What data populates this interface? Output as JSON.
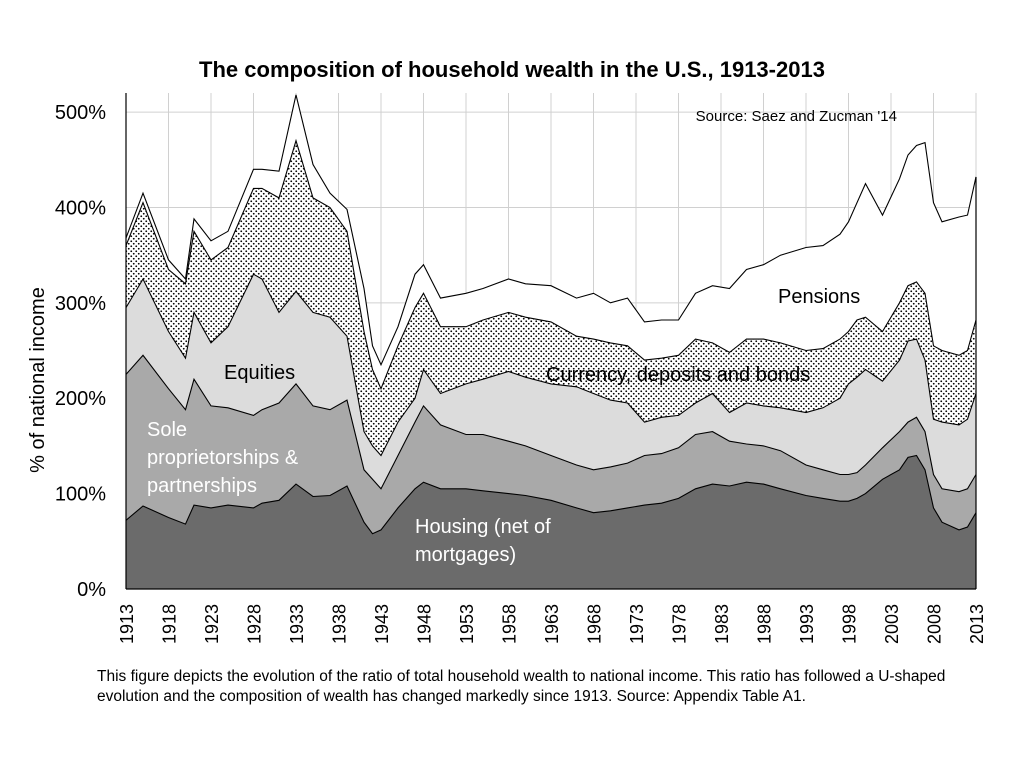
{
  "chart_data": {
    "type": "area",
    "title": "The composition of household wealth in the U.S., 1913-2013",
    "ylabel": "%  of national income",
    "xlabel": "",
    "xlim": [
      1913,
      2013
    ],
    "ylim": [
      0,
      520
    ],
    "grid": true,
    "yticks": [
      {
        "value": 0,
        "label": "0%"
      },
      {
        "value": 100,
        "label": "100%"
      },
      {
        "value": 200,
        "label": "200%"
      },
      {
        "value": 300,
        "label": "300%"
      },
      {
        "value": 400,
        "label": "400%"
      },
      {
        "value": 500,
        "label": "500%"
      }
    ],
    "xticks": [
      {
        "value": 1913,
        "label": "1913"
      },
      {
        "value": 1918,
        "label": "1918"
      },
      {
        "value": 1923,
        "label": "1923"
      },
      {
        "value": 1928,
        "label": "1928"
      },
      {
        "value": 1933,
        "label": "1933"
      },
      {
        "value": 1938,
        "label": "1938"
      },
      {
        "value": 1943,
        "label": "1943"
      },
      {
        "value": 1948,
        "label": "1948"
      },
      {
        "value": 1953,
        "label": "1953"
      },
      {
        "value": 1958,
        "label": "1958"
      },
      {
        "value": 1963,
        "label": "1963"
      },
      {
        "value": 1968,
        "label": "1968"
      },
      {
        "value": 1973,
        "label": "1973"
      },
      {
        "value": 1978,
        "label": "1978"
      },
      {
        "value": 1983,
        "label": "1983"
      },
      {
        "value": 1988,
        "label": "1988"
      },
      {
        "value": 1993,
        "label": "1993"
      },
      {
        "value": 1998,
        "label": "1998"
      },
      {
        "value": 2003,
        "label": "2003"
      },
      {
        "value": 2008,
        "label": "2008"
      },
      {
        "value": 2013,
        "label": "2013"
      }
    ],
    "x": [
      1913,
      1915,
      1918,
      1920,
      1921,
      1923,
      1925,
      1928,
      1929,
      1931,
      1933,
      1935,
      1937,
      1939,
      1941,
      1942,
      1943,
      1945,
      1947,
      1948,
      1950,
      1953,
      1955,
      1958,
      1960,
      1963,
      1966,
      1968,
      1970,
      1972,
      1974,
      1976,
      1978,
      1980,
      1982,
      1984,
      1986,
      1988,
      1990,
      1993,
      1995,
      1997,
      1998,
      1999,
      2000,
      2002,
      2004,
      2005,
      2006,
      2007,
      2008,
      2009,
      2011,
      2012,
      2013
    ],
    "series": [
      {
        "name": "Housing (net of mortgages)",
        "label": "Housing (net of\nmortgages)",
        "color": "#6b6b6b",
        "values": [
          72,
          87,
          75,
          68,
          88,
          85,
          88,
          85,
          90,
          93,
          110,
          97,
          98,
          108,
          70,
          58,
          62,
          85,
          105,
          112,
          105,
          105,
          103,
          100,
          98,
          93,
          85,
          80,
          82,
          85,
          88,
          90,
          95,
          105,
          110,
          108,
          112,
          110,
          105,
          98,
          95,
          92,
          92,
          95,
          100,
          115,
          125,
          138,
          140,
          125,
          85,
          70,
          62,
          65,
          80
        ]
      },
      {
        "name": "Sole proprietorships & partnerships",
        "label": "Sole\nproprietorships &\npartnerships",
        "color": "#a9a9a9",
        "values": [
          225,
          245,
          210,
          188,
          220,
          192,
          190,
          182,
          188,
          195,
          215,
          192,
          188,
          198,
          125,
          115,
          105,
          140,
          175,
          192,
          172,
          162,
          162,
          155,
          150,
          140,
          130,
          125,
          128,
          132,
          140,
          142,
          148,
          162,
          165,
          155,
          152,
          150,
          145,
          130,
          125,
          120,
          120,
          122,
          130,
          148,
          165,
          175,
          180,
          165,
          120,
          105,
          102,
          105,
          120
        ]
      },
      {
        "name": "Equities",
        "label": "Equities",
        "color": "#dcdcdc",
        "values": [
          295,
          325,
          270,
          242,
          290,
          258,
          275,
          330,
          325,
          290,
          312,
          290,
          285,
          265,
          165,
          150,
          140,
          175,
          200,
          230,
          205,
          215,
          220,
          228,
          222,
          215,
          212,
          205,
          198,
          195,
          175,
          180,
          182,
          195,
          205,
          185,
          195,
          192,
          190,
          185,
          190,
          200,
          215,
          222,
          230,
          218,
          240,
          260,
          262,
          240,
          178,
          175,
          172,
          178,
          205
        ]
      },
      {
        "name": "Currency, deposits and bonds",
        "label": "Currency, deposits and bonds",
        "color": "#ffffff",
        "values": [
          360,
          405,
          335,
          320,
          375,
          345,
          358,
          420,
          420,
          410,
          470,
          410,
          400,
          375,
          270,
          230,
          210,
          255,
          295,
          310,
          275,
          275,
          282,
          290,
          285,
          280,
          265,
          262,
          258,
          255,
          240,
          242,
          245,
          262,
          258,
          248,
          262,
          262,
          258,
          250,
          252,
          262,
          270,
          282,
          285,
          270,
          300,
          318,
          322,
          310,
          255,
          250,
          245,
          250,
          282
        ]
      },
      {
        "name": "Pensions",
        "label": "Pensions",
        "color": "#ffffff",
        "values": [
          368,
          415,
          345,
          325,
          388,
          365,
          375,
          440,
          440,
          438,
          518,
          445,
          415,
          398,
          315,
          255,
          235,
          275,
          330,
          340,
          305,
          310,
          315,
          325,
          320,
          318,
          305,
          310,
          300,
          305,
          280,
          282,
          282,
          310,
          318,
          315,
          335,
          340,
          350,
          358,
          360,
          372,
          385,
          405,
          425,
          392,
          430,
          455,
          465,
          468,
          405,
          385,
          390,
          392,
          432
        ]
      }
    ],
    "annotations": [
      {
        "text": "Source: Saez and Zucman '14"
      }
    ],
    "caption": "This figure depicts the evolution of the ratio of total household wealth to national income. This ratio has followed a U-shaped evolution and the composition of wealth has changed markedly since 1913. Source: Appendix Table A1."
  }
}
